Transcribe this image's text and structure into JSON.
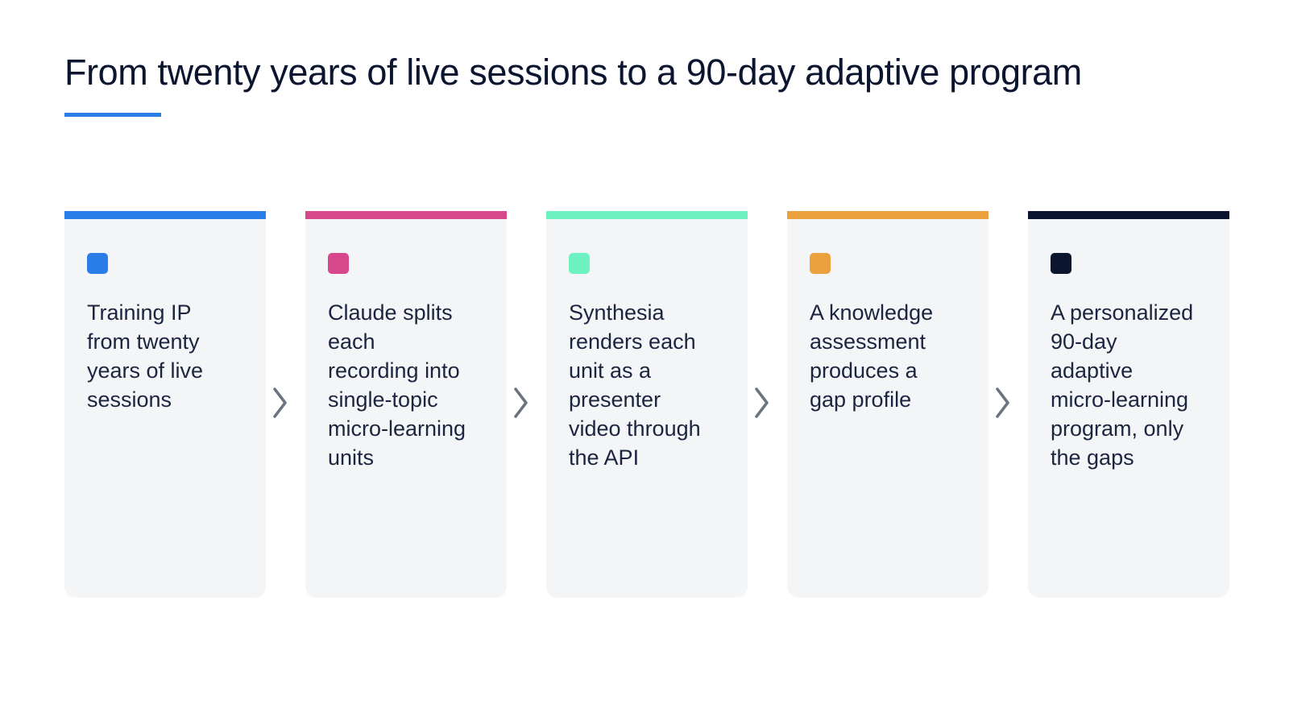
{
  "title": "From twenty years of live sessions to a 90-day adaptive program",
  "colors": {
    "title_underline": "#2b7de9",
    "card_background": "#f4f5f7",
    "arrow": "#6b7280"
  },
  "steps": [
    {
      "text": "Training IP from twenty years of live sessions",
      "color": "#2b7de9"
    },
    {
      "text": "Claude splits each recording into single-topic micro-learning units",
      "color": "#d6478b"
    },
    {
      "text": "Synthesia renders each unit as a presenter video through the API",
      "color": "#6ff2c2"
    },
    {
      "text": "A knowledge assessment produces a gap profile",
      "color": "#eba13d"
    },
    {
      "text": "A personalized 90-day adaptive micro-learning program, only the gaps",
      "color": "#0b1530"
    }
  ],
  "connector_icon": "chevron-right-icon"
}
